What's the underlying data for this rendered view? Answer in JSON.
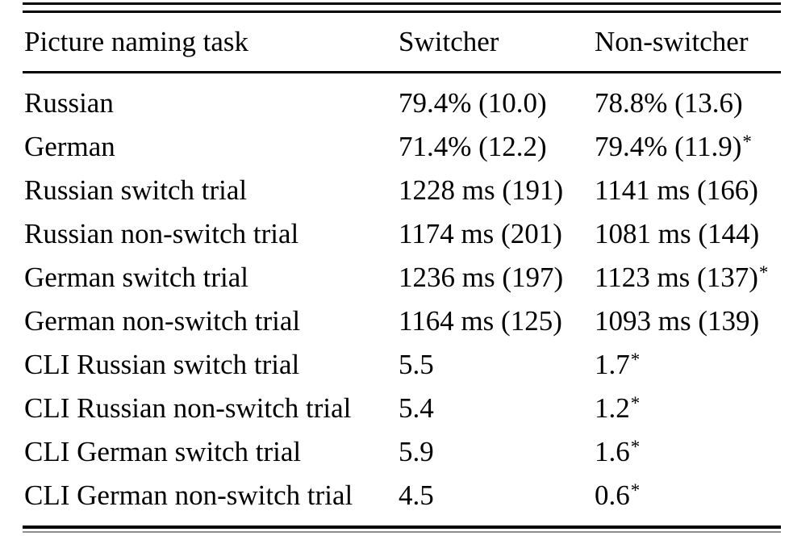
{
  "table": {
    "header": {
      "task": "Picture naming task",
      "switcher": "Switcher",
      "non_switcher": "Non-switcher"
    },
    "rows": [
      {
        "task": "Russian",
        "switcher": "79.4% (10.0)",
        "non_switcher": "78.8% (13.6)",
        "star": ""
      },
      {
        "task": "German",
        "switcher": "71.4% (12.2)",
        "non_switcher": "79.4% (11.9)",
        "star": "*"
      },
      {
        "task": "Russian switch trial",
        "switcher": "1228 ms (191)",
        "non_switcher": "1141 ms (166)",
        "star": ""
      },
      {
        "task": "Russian non-switch trial",
        "switcher": "1174 ms (201)",
        "non_switcher": "1081 ms (144)",
        "star": ""
      },
      {
        "task": "German switch trial",
        "switcher": "1236 ms (197)",
        "non_switcher": "1123 ms (137)",
        "star": "*"
      },
      {
        "task": "German non-switch trial",
        "switcher": "1164 ms (125)",
        "non_switcher": "1093 ms (139)",
        "star": ""
      },
      {
        "task": "CLI Russian switch trial",
        "switcher": "5.5",
        "non_switcher": "1.7",
        "star": "*"
      },
      {
        "task": "CLI Russian non-switch trial",
        "switcher": "5.4",
        "non_switcher": "1.2",
        "star": "*"
      },
      {
        "task": "CLI German switch trial",
        "switcher": "5.9",
        "non_switcher": "1.6",
        "star": "*"
      },
      {
        "task": "CLI German non-switch trial",
        "switcher": "4.5",
        "non_switcher": "0.6",
        "star": "*"
      }
    ]
  },
  "colors": {
    "text": "#000000",
    "rule": "#000000",
    "rule_light": "#8f8f8f",
    "background": "#ffffff"
  }
}
